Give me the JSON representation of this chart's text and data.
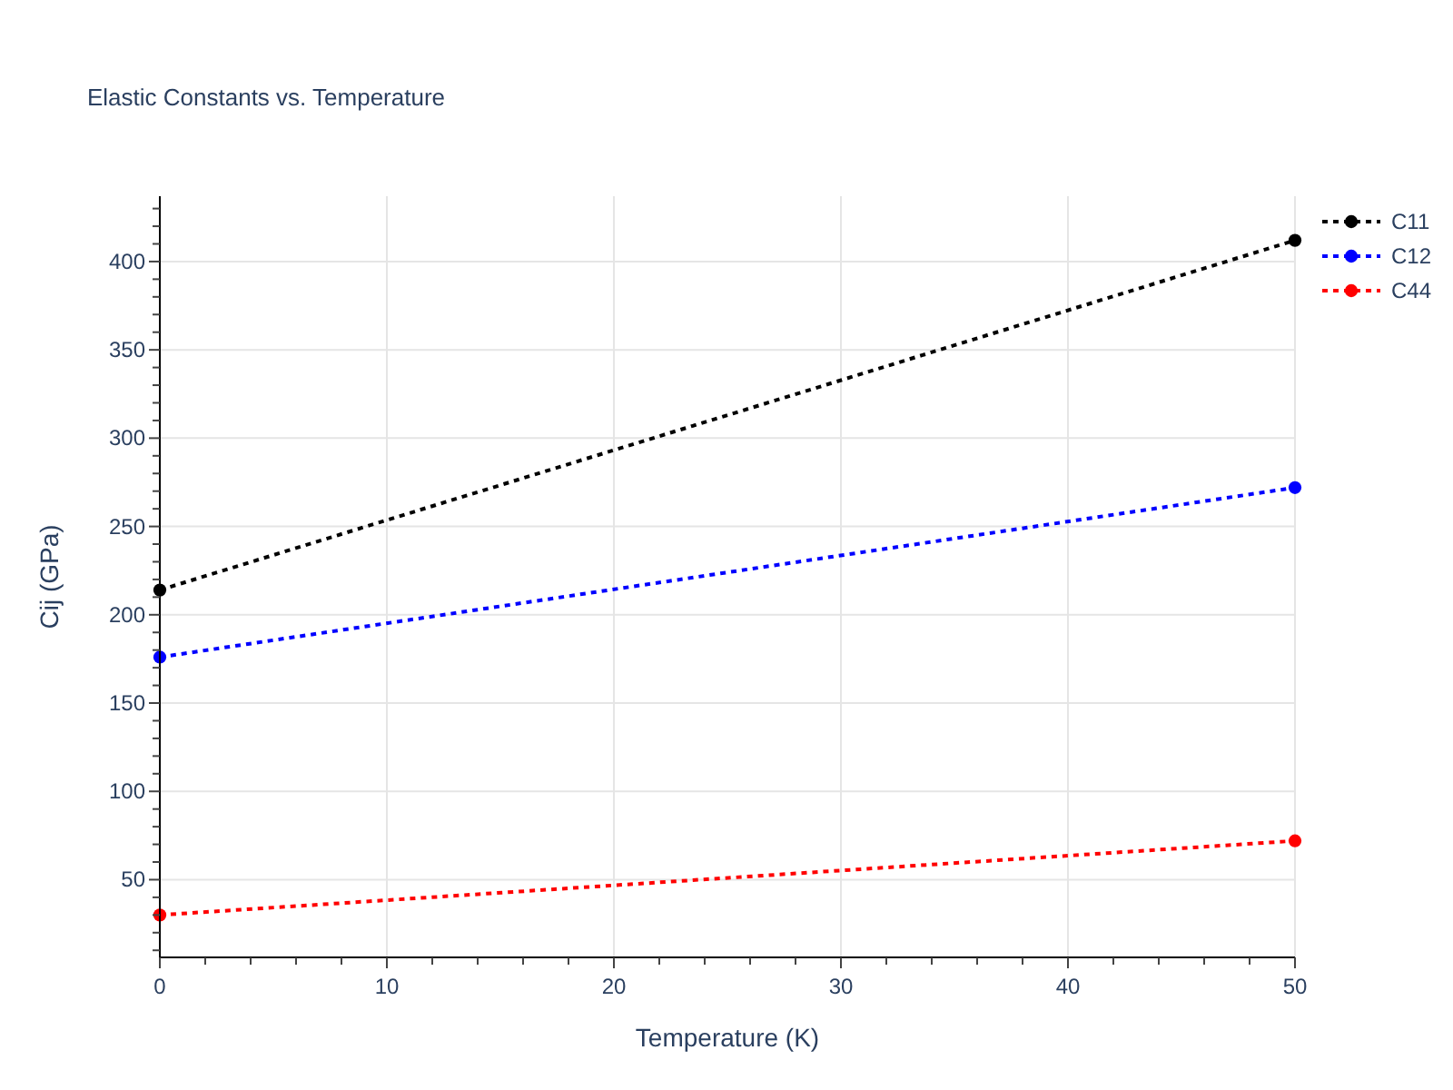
{
  "chart_data": {
    "type": "line",
    "title": "Elastic Constants vs. Temperature",
    "xlabel": "Temperature (K)",
    "ylabel": "Cij (GPa)",
    "x": [
      0,
      50
    ],
    "series": [
      {
        "name": "C11",
        "color": "#000000",
        "values": [
          214,
          412
        ]
      },
      {
        "name": "C12",
        "color": "#0000ff",
        "values": [
          176,
          272
        ]
      },
      {
        "name": "C44",
        "color": "#ff0000",
        "values": [
          30,
          72
        ]
      }
    ],
    "xlim": [
      0,
      50
    ],
    "ylim": [
      6,
      437
    ],
    "xticks": [
      0,
      {
        "value": 2,
        "label": null
      },
      {
        "value": 4,
        "label": null
      },
      {
        "value": 6,
        "label": null
      },
      {
        "value": 8,
        "label": null
      },
      10,
      {
        "value": 12,
        "label": null
      },
      {
        "value": 14,
        "label": null
      },
      {
        "value": 16,
        "label": null
      },
      {
        "value": 18,
        "label": null
      },
      20,
      {
        "value": 22,
        "label": null
      },
      {
        "value": 24,
        "label": null
      },
      {
        "value": 26,
        "label": null
      },
      {
        "value": 28,
        "label": null
      },
      30,
      {
        "value": 32,
        "label": null
      },
      {
        "value": 34,
        "label": null
      },
      {
        "value": 36,
        "label": null
      },
      {
        "value": 38,
        "label": null
      },
      40,
      {
        "value": 42,
        "label": null
      },
      {
        "value": 44,
        "label": null
      },
      {
        "value": 46,
        "label": null
      },
      {
        "value": 48,
        "label": null
      },
      50
    ],
    "yticks": [
      {
        "value": 10,
        "label": null
      },
      {
        "value": 20,
        "label": null
      },
      {
        "value": 30,
        "label": null
      },
      {
        "value": 40,
        "label": null
      },
      50,
      {
        "value": 60,
        "label": null
      },
      {
        "value": 70,
        "label": null
      },
      {
        "value": 80,
        "label": null
      },
      {
        "value": 90,
        "label": null
      },
      100,
      {
        "value": 110,
        "label": null
      },
      {
        "value": 120,
        "label": null
      },
      {
        "value": 130,
        "label": null
      },
      {
        "value": 140,
        "label": null
      },
      150,
      {
        "value": 160,
        "label": null
      },
      {
        "value": 170,
        "label": null
      },
      {
        "value": 180,
        "label": null
      },
      {
        "value": 190,
        "label": null
      },
      200,
      {
        "value": 210,
        "label": null
      },
      {
        "value": 220,
        "label": null
      },
      {
        "value": 230,
        "label": null
      },
      {
        "value": 240,
        "label": null
      },
      250,
      {
        "value": 260,
        "label": null
      },
      {
        "value": 270,
        "label": null
      },
      {
        "value": 280,
        "label": null
      },
      {
        "value": 290,
        "label": null
      },
      300,
      {
        "value": 310,
        "label": null
      },
      {
        "value": 320,
        "label": null
      },
      {
        "value": 330,
        "label": null
      },
      {
        "value": 340,
        "label": null
      },
      350,
      {
        "value": 360,
        "label": null
      },
      {
        "value": 370,
        "label": null
      },
      {
        "value": 380,
        "label": null
      },
      {
        "value": 390,
        "label": null
      },
      400,
      {
        "value": 410,
        "label": null
      },
      {
        "value": 420,
        "label": null
      },
      {
        "value": 430,
        "label": null
      }
    ],
    "grid": true,
    "legend": "top right",
    "marker": "circle",
    "line_style": "dotted"
  }
}
